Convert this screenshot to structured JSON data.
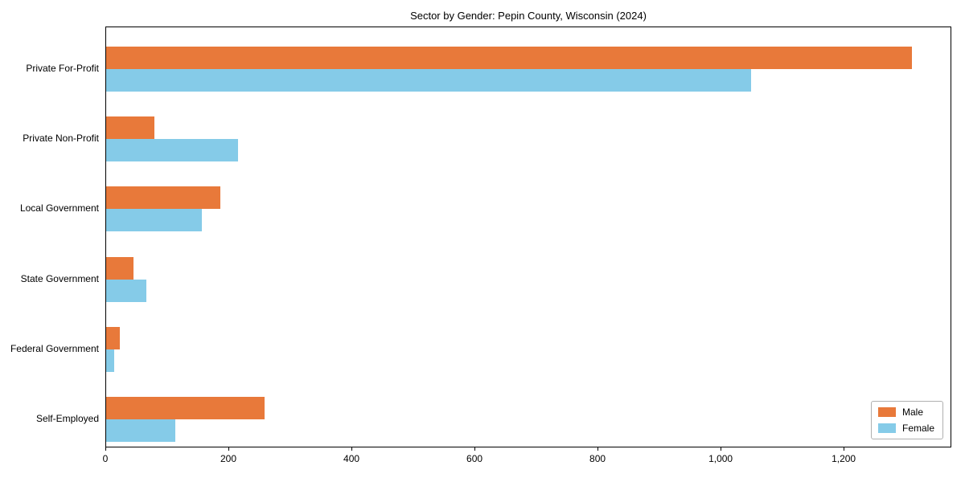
{
  "title": "Sector by Gender: Pepin County, Wisconsin (2024)",
  "chart_data": {
    "type": "bar",
    "orientation": "horizontal",
    "title": "Sector by Gender: Pepin County, Wisconsin (2024)",
    "xlabel": "",
    "ylabel": "",
    "categories": [
      "Private For-Profit",
      "Private Non-Profit",
      "Local Government",
      "State Government",
      "Federal Government",
      "Self-Employed"
    ],
    "series": [
      {
        "name": "Male",
        "color": "#e8793a",
        "values": [
          1310,
          78,
          185,
          45,
          22,
          258
        ]
      },
      {
        "name": "Female",
        "color": "#85cbe8",
        "values": [
          1048,
          215,
          155,
          65,
          13,
          113
        ]
      }
    ],
    "xlim": [
      0,
      1375
    ],
    "xticks": [
      0,
      200,
      400,
      600,
      800,
      1000,
      1200
    ],
    "xtick_labels": [
      "0",
      "200",
      "400",
      "600",
      "800",
      "1,000",
      "1,200"
    ],
    "grid": false,
    "legend_position": "lower right"
  }
}
